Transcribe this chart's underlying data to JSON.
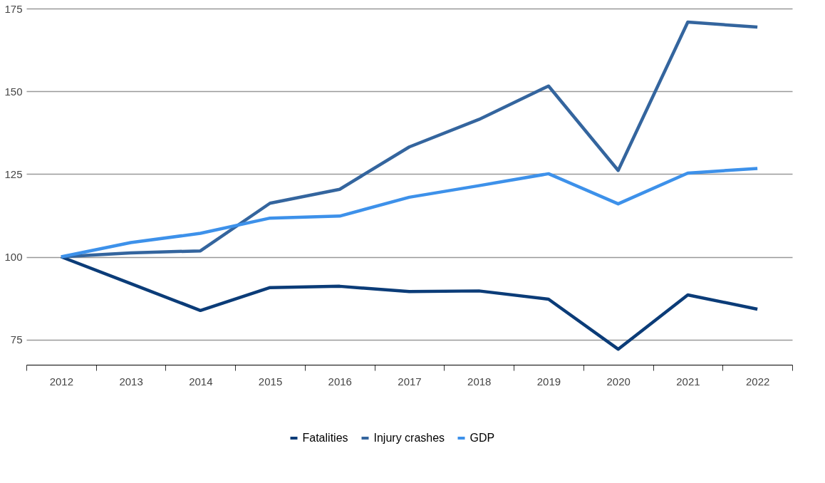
{
  "chart_data": {
    "type": "line",
    "categories": [
      "2012",
      "2013",
      "2014",
      "2015",
      "2016",
      "2017",
      "2018",
      "2019",
      "2020",
      "2021",
      "2022"
    ],
    "series": [
      {
        "name": "Fatalities",
        "color": "#0b3c78",
        "values": [
          100,
          91.9,
          83.8,
          90.7,
          91.1,
          89.5,
          89.7,
          87.2,
          72.1,
          88.5,
          84.2
        ]
      },
      {
        "name": "Injury crashes",
        "color": "#34659e",
        "values": [
          100,
          101.2,
          101.8,
          116.2,
          120.4,
          133.2,
          141.5,
          151.6,
          126.1,
          170.9,
          169.4
        ]
      },
      {
        "name": "GDP",
        "color": "#3d91ea",
        "values": [
          100,
          104.3,
          107.1,
          111.7,
          112.3,
          118,
          121.5,
          125.1,
          116,
          125.3,
          126.7
        ]
      }
    ],
    "ylim": [
      67.4,
      175
    ],
    "yticks": [
      75,
      100,
      125,
      150,
      175
    ],
    "grid": "y",
    "legend": "bottom",
    "marker": "none",
    "line_style": "solid"
  }
}
